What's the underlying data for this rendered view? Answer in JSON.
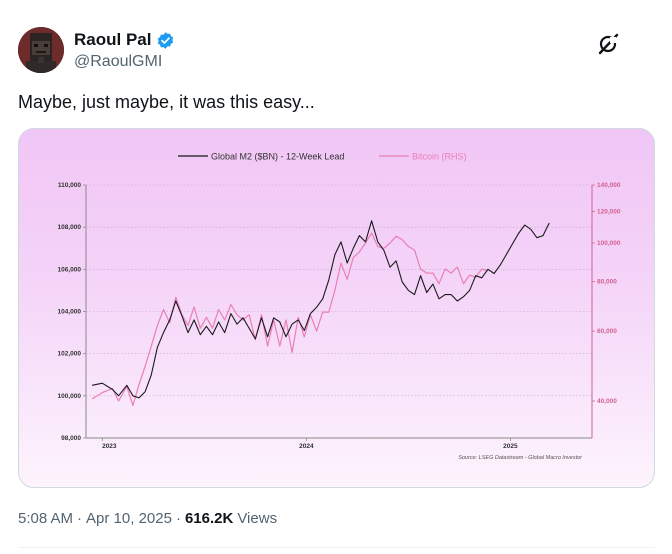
{
  "author": {
    "name": "Raoul Pal",
    "handle": "@RaoulGMI"
  },
  "tweet": {
    "text": "Maybe, just maybe, it was this easy..."
  },
  "meta": {
    "time": "5:08 AM",
    "separator": "·",
    "date": "Apr 10, 2025",
    "views_count": "616.2K",
    "views_label": "Views"
  },
  "icons": {
    "verified": "verified-badge-icon",
    "grok": "grok-icon"
  },
  "colors": {
    "m2_line": "#1a1a1a",
    "btc_line": "#e97fb4",
    "right_axis_text": "#d2618f",
    "verified": "#1d9bf0"
  },
  "chart_data": {
    "type": "line",
    "legend": [
      {
        "name": "Global M2 ($BN) - 12-Week Lead",
        "color": "#1a1a1a"
      },
      {
        "name": "Bitcoin (RHS)",
        "color": "#e97fb4"
      }
    ],
    "legend_placement": "top-center",
    "left_axis": {
      "ticks": [
        "110,000",
        "108,000",
        "106,000",
        "104,000",
        "102,000",
        "100,000",
        "98,000"
      ],
      "range": [
        98000,
        110000
      ]
    },
    "right_axis": {
      "ticks": [
        "140,000",
        "120,000",
        "100,000",
        "80,000",
        "60,000",
        "40,000"
      ],
      "scale": "log"
    },
    "x_ticks": [
      "2023",
      "2024",
      "2025"
    ],
    "source": "Source: LSEG Datastream - Global Macro Investor",
    "grid": true,
    "series": [
      {
        "name": "Global M2 ($BN) - 12-Week Lead",
        "axis": "left",
        "x": [
          2022.95,
          2023.0,
          2023.05,
          2023.08,
          2023.12,
          2023.15,
          2023.18,
          2023.21,
          2023.24,
          2023.27,
          2023.3,
          2023.33,
          2023.36,
          2023.39,
          2023.42,
          2023.45,
          2023.48,
          2023.51,
          2023.54,
          2023.57,
          2023.6,
          2023.63,
          2023.66,
          2023.69,
          2023.72,
          2023.75,
          2023.78,
          2023.81,
          2023.84,
          2023.87,
          2023.9,
          2023.93,
          2023.96,
          2023.99,
          2024.02,
          2024.05,
          2024.08,
          2024.11,
          2024.14,
          2024.17,
          2024.2,
          2024.23,
          2024.26,
          2024.29,
          2024.32,
          2024.35,
          2024.38,
          2024.41,
          2024.44,
          2024.47,
          2024.5,
          2024.53,
          2024.56,
          2024.59,
          2024.62,
          2024.65,
          2024.68,
          2024.71,
          2024.74,
          2024.77,
          2024.8,
          2024.83,
          2024.86,
          2024.89,
          2024.92,
          2024.95,
          2024.98,
          2025.01,
          2025.04,
          2025.07,
          2025.1,
          2025.13,
          2025.16,
          2025.19
        ],
        "y": [
          100500,
          100600,
          100300,
          100000,
          100500,
          100000,
          99900,
          100200,
          101000,
          102300,
          103000,
          103600,
          104500,
          103800,
          103000,
          103600,
          102900,
          103300,
          102900,
          103500,
          103000,
          103900,
          103400,
          103700,
          103200,
          102700,
          103700,
          102800,
          103700,
          103500,
          102800,
          103400,
          103600,
          103100,
          103900,
          104200,
          104600,
          105500,
          106700,
          107300,
          106300,
          107000,
          107600,
          107300,
          108300,
          107300,
          106900,
          106100,
          106400,
          105400,
          105000,
          104800,
          105700,
          104900,
          105300,
          104600,
          104800,
          104800,
          104500,
          104700,
          105000,
          105700,
          105600,
          106000,
          105800,
          106200,
          106700,
          107200,
          107700,
          108100,
          107900,
          107500,
          107600,
          108200
        ]
      },
      {
        "name": "Bitcoin (RHS)",
        "axis": "right",
        "x": [
          2022.95,
          2023.0,
          2023.05,
          2023.08,
          2023.12,
          2023.15,
          2023.18,
          2023.21,
          2023.24,
          2023.27,
          2023.3,
          2023.33,
          2023.36,
          2023.39,
          2023.42,
          2023.45,
          2023.48,
          2023.51,
          2023.54,
          2023.57,
          2023.6,
          2023.63,
          2023.66,
          2023.69,
          2023.72,
          2023.75,
          2023.78,
          2023.81,
          2023.84,
          2023.87,
          2023.9,
          2023.93,
          2023.96,
          2023.99,
          2024.02,
          2024.05,
          2024.08,
          2024.11,
          2024.14,
          2024.17,
          2024.2,
          2024.23,
          2024.26,
          2024.29,
          2024.32,
          2024.35,
          2024.38,
          2024.41,
          2024.44,
          2024.47,
          2024.5,
          2024.53,
          2024.56,
          2024.59,
          2024.62,
          2024.65,
          2024.68,
          2024.71,
          2024.74,
          2024.77,
          2024.8,
          2024.83,
          2024.86,
          2024.89
        ],
        "y": [
          40500,
          42000,
          43000,
          40000,
          43500,
          39000,
          44000,
          49000,
          55000,
          62000,
          68000,
          63000,
          73000,
          66000,
          62000,
          69000,
          61000,
          65000,
          61000,
          68000,
          64000,
          70000,
          66000,
          64000,
          66000,
          57000,
          66000,
          55000,
          64000,
          55000,
          64000,
          53000,
          65000,
          58000,
          66000,
          60000,
          67000,
          67000,
          76000,
          89000,
          81000,
          92000,
          95000,
          100000,
          106000,
          98000,
          97000,
          100000,
          104000,
          102000,
          98000,
          96000,
          86000,
          84000,
          84000,
          79000,
          86000,
          84000,
          87000,
          79000,
          83000,
          82000,
          86000,
          85000
        ]
      }
    ]
  }
}
